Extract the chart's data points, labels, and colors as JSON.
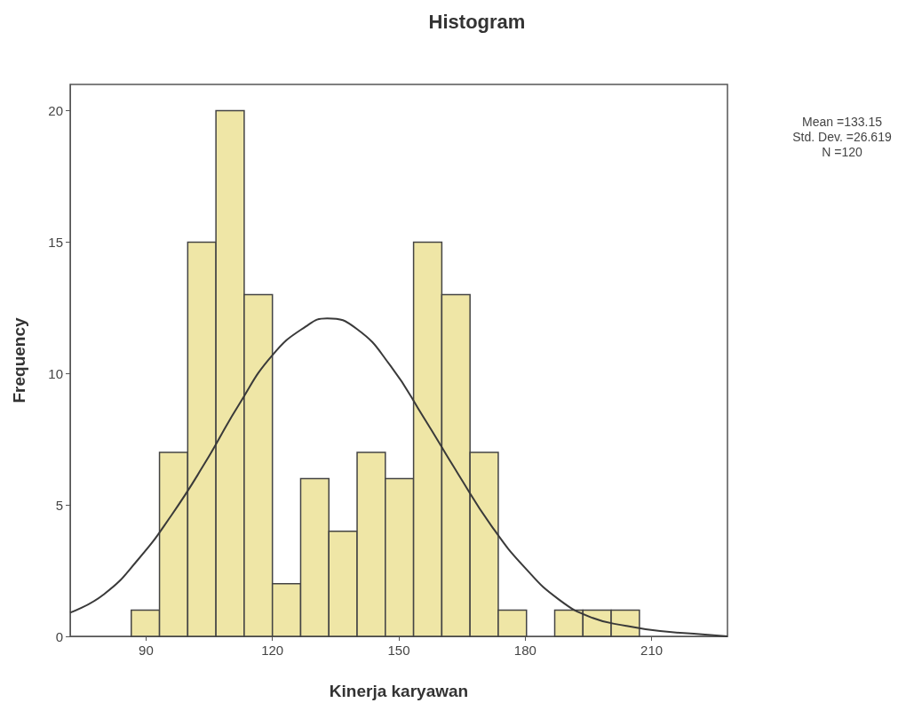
{
  "chart_data": {
    "type": "histogram",
    "title": "Histogram",
    "xlabel": "Kinerja karyawan",
    "ylabel": "Frequency",
    "bins": [
      86.5,
      93.2,
      99.9,
      106.6,
      113.3,
      120,
      126.7,
      133.4,
      140.1,
      146.8,
      153.5,
      160.2,
      166.9,
      173.6,
      180.3,
      187,
      193.7,
      200.4,
      207.1
    ],
    "series": [
      {
        "color": "#efe6a6",
        "values": [
          1,
          7,
          15,
          20,
          13,
          2,
          6,
          4,
          7,
          6,
          15,
          13,
          7,
          1,
          0,
          1,
          1,
          1
        ]
      },
      {
        "type": "line",
        "color": "#3a3a3a",
        "x": [
          72,
          80,
          88,
          96,
          104,
          112,
          120,
          128,
          133,
          140,
          148,
          156,
          164,
          172,
          180,
          188,
          196,
          204,
          212,
          220,
          228
        ],
        "values": [
          0.9,
          1.6,
          2.9,
          4.6,
          6.6,
          8.8,
          10.7,
          11.8,
          12.1,
          11.7,
          10.3,
          8.3,
          6.2,
          4.2,
          2.6,
          1.4,
          0.7,
          0.4,
          0.2,
          0.1,
          0.0
        ]
      }
    ],
    "xlim": [
      72,
      228
    ],
    "xticks": [
      90,
      120,
      150,
      180,
      210
    ],
    "ylim": [
      0,
      21
    ],
    "yticks": [
      0,
      5,
      10,
      15,
      20
    ],
    "marker": "none",
    "grid": false,
    "annotations": [
      "Mean =133.15",
      "Std. Dev. =26.619",
      "N =120"
    ]
  }
}
